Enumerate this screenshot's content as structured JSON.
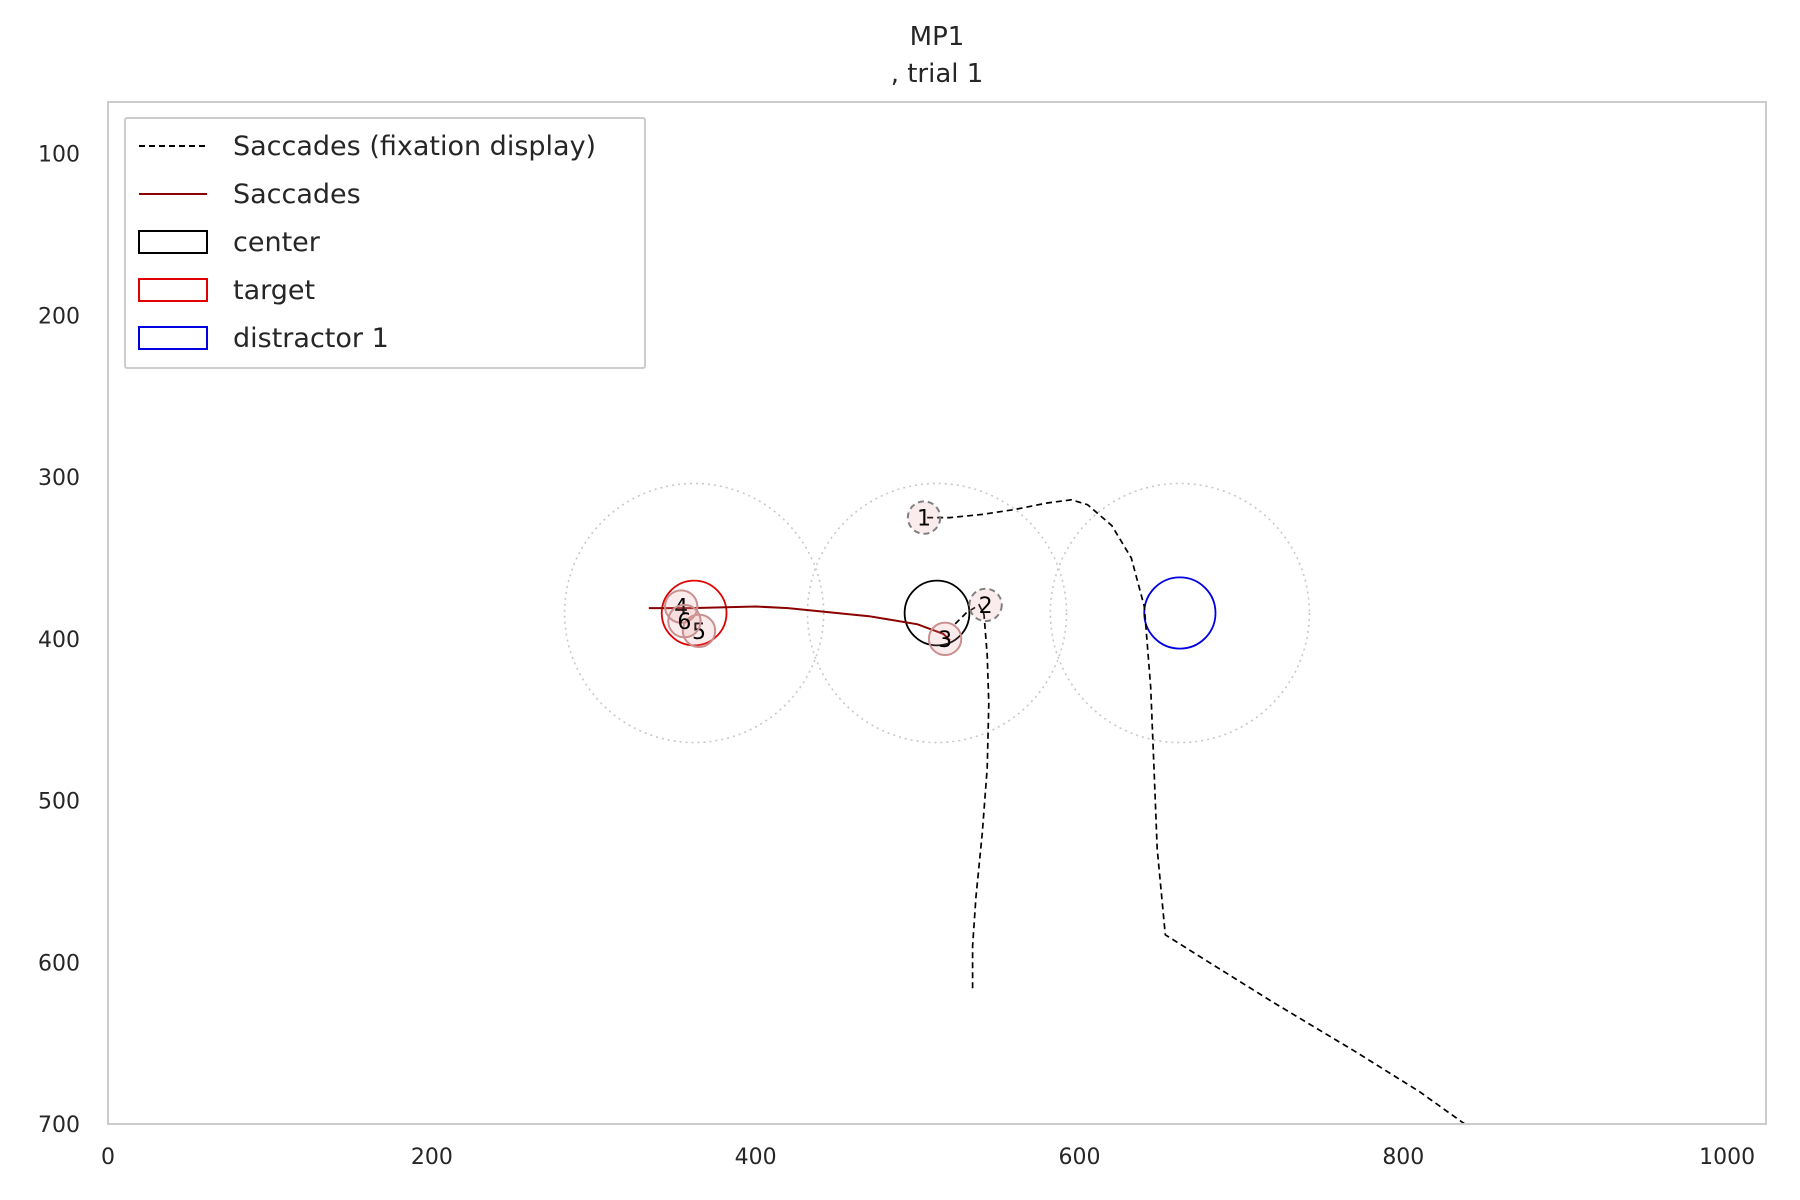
{
  "chart_data": {
    "type": "line",
    "title": "MP1",
    "subtitle": ", trial 1",
    "xlim": [
      0,
      1024
    ],
    "ylim": [
      700,
      68
    ],
    "y_inverted": true,
    "grid": false,
    "legend_position": "top-left",
    "x_ticks": [
      0,
      200,
      400,
      600,
      800,
      1000
    ],
    "x_tick_labels": [
      "0",
      "200",
      "400",
      "600",
      "800",
      "1000"
    ],
    "y_ticks": [
      100,
      200,
      300,
      400,
      500,
      600,
      700
    ],
    "y_tick_labels": [
      "100",
      "200",
      "300",
      "400",
      "500",
      "600",
      "700"
    ],
    "legend": [
      {
        "label": "Saccades (fixation display)",
        "kind": "dashed-line",
        "color": "#000000"
      },
      {
        "label": "Saccades",
        "kind": "line",
        "color": "#8b0000"
      },
      {
        "label": "center",
        "kind": "box",
        "color": "#000000"
      },
      {
        "label": "target",
        "kind": "box",
        "color": "#e00000"
      },
      {
        "label": "distractor 1",
        "kind": "box",
        "color": "#0000e0"
      }
    ],
    "regions": [
      {
        "name": "center",
        "cx": 512,
        "cy": 384,
        "r": 20,
        "color": "#000000"
      },
      {
        "name": "target",
        "cx": 362,
        "cy": 384,
        "r": 20,
        "color": "#e00000"
      },
      {
        "name": "distractor 1",
        "cx": 662,
        "cy": 384,
        "r": 22,
        "color": "#0000e0"
      }
    ],
    "zones": [
      {
        "cx": 362,
        "cy": 384,
        "r": 80
      },
      {
        "cx": 512,
        "cy": 384,
        "r": 80
      },
      {
        "cx": 662,
        "cy": 384,
        "r": 80
      }
    ],
    "series": [
      {
        "style": "dashed",
        "color": "#000000",
        "points": [
          [
            534,
            616
          ],
          [
            534,
            590
          ],
          [
            536,
            560
          ],
          [
            540,
            520
          ],
          [
            543,
            480
          ],
          [
            544,
            440
          ],
          [
            543,
            410
          ],
          [
            541,
            385
          ],
          [
            538,
            379
          ],
          [
            530,
            384
          ],
          [
            522,
            392
          ]
        ]
      },
      {
        "style": "dashed",
        "color": "#000000",
        "points": [
          [
            838,
            700
          ],
          [
            810,
            680
          ],
          [
            770,
            655
          ],
          [
            720,
            625
          ],
          [
            680,
            600
          ],
          [
            653,
            583
          ],
          [
            648,
            530
          ],
          [
            646,
            480
          ],
          [
            644,
            430
          ],
          [
            640,
            380
          ],
          [
            632,
            350
          ],
          [
            620,
            330
          ],
          [
            605,
            317
          ],
          [
            595,
            314
          ],
          [
            580,
            316
          ],
          [
            560,
            320
          ],
          [
            540,
            323
          ],
          [
            520,
            325
          ],
          [
            505,
            325
          ]
        ]
      },
      {
        "style": "solid",
        "color": "#8b0000",
        "points": [
          [
            334,
            381
          ],
          [
            360,
            381
          ],
          [
            400,
            380
          ],
          [
            420,
            381
          ],
          [
            440,
            383
          ],
          [
            470,
            386
          ],
          [
            500,
            391
          ],
          [
            516,
            397
          ],
          [
            520,
            401
          ]
        ]
      }
    ],
    "fixations": [
      {
        "label": "1",
        "x": 504,
        "y": 325,
        "r": 10,
        "style": "dashed",
        "color": "#808080"
      },
      {
        "label": "2",
        "x": 542,
        "y": 379,
        "r": 10,
        "style": "dashed",
        "color": "#808080"
      },
      {
        "label": "3",
        "x": 517,
        "y": 400,
        "r": 10,
        "style": "solid",
        "color": "#c99090"
      },
      {
        "label": "4",
        "x": 354,
        "y": 380,
        "r": 10,
        "style": "solid",
        "color": "#c99090"
      },
      {
        "label": "5",
        "x": 365,
        "y": 395,
        "r": 10,
        "style": "solid",
        "color": "#c99090"
      },
      {
        "label": "6",
        "x": 356,
        "y": 389,
        "r": 10,
        "style": "solid",
        "color": "#c99090"
      }
    ]
  }
}
